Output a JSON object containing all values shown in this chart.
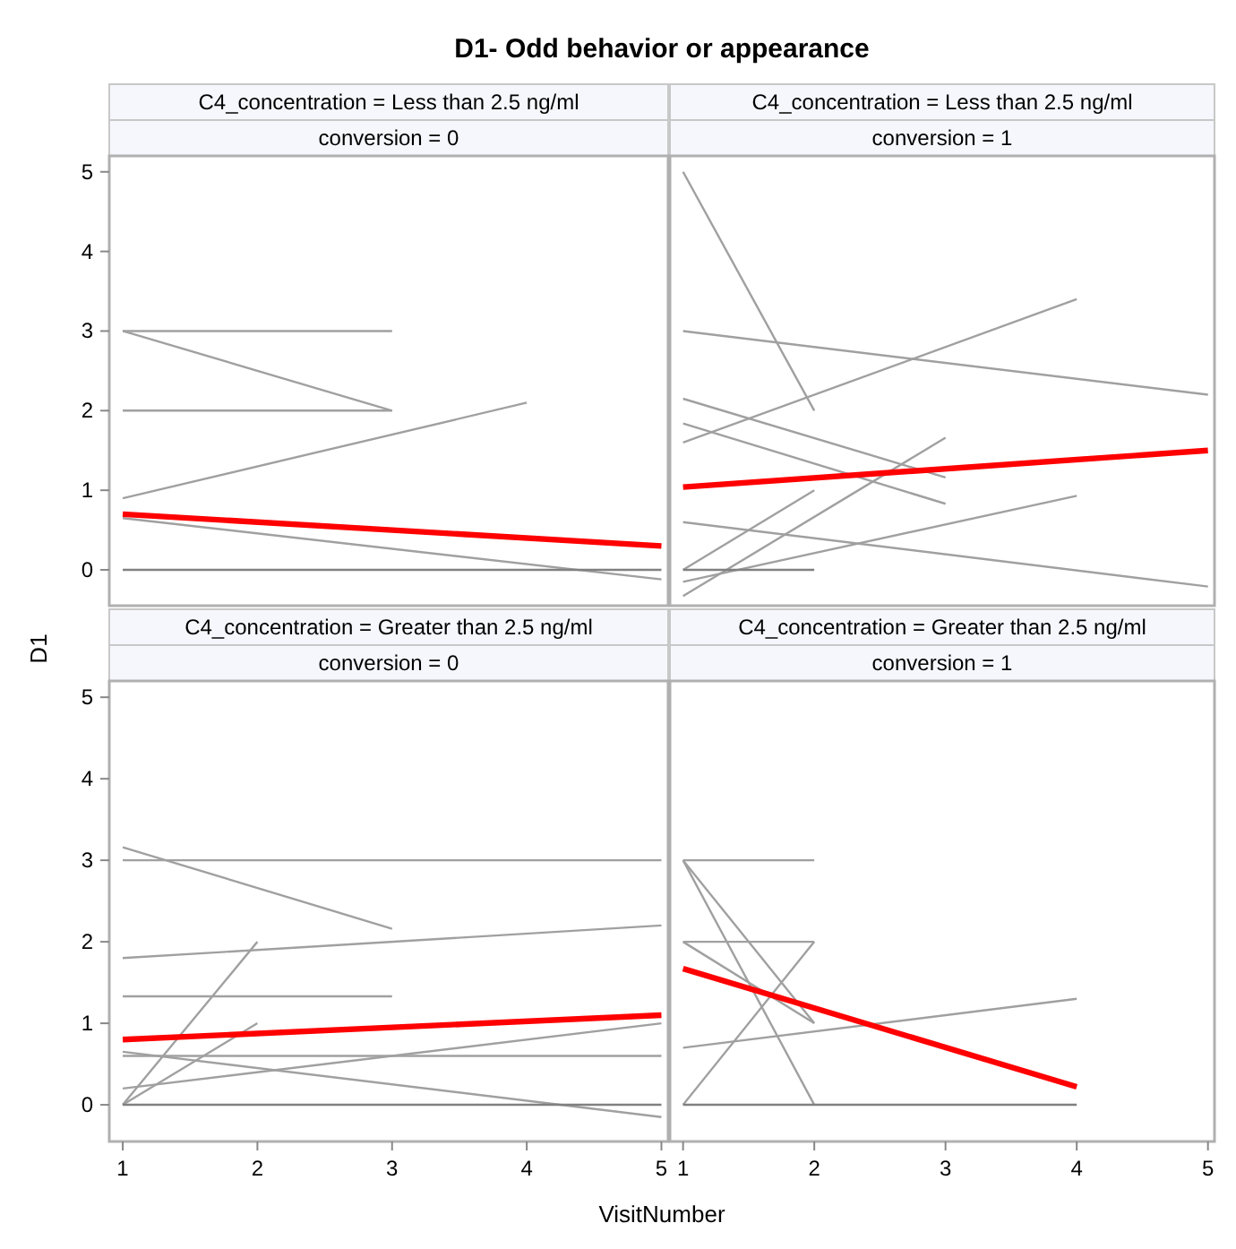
{
  "chart_data": [
    {
      "type": "line",
      "title": "C4_concentration = Less than 2.5 ng/ml",
      "subtitle": "conversion = 0",
      "ylabel": "D1",
      "annotations": [
        "D1- Odd behavior or appearance"
      ],
      "xlim": [
        0.9,
        5.05
      ],
      "ylim": [
        -0.45,
        5.2
      ],
      "yticks": [
        0,
        1,
        2,
        3,
        4,
        5
      ],
      "tick_labels": "y",
      "grid": false,
      "series": [
        {
          "color": "#a0a0a0",
          "x": [
            1,
            3
          ],
          "values": [
            3,
            3
          ]
        },
        {
          "color": "#a0a0a0",
          "x": [
            1,
            3
          ],
          "values": [
            3,
            2
          ]
        },
        {
          "color": "#a0a0a0",
          "x": [
            1,
            3
          ],
          "values": [
            2,
            2
          ]
        },
        {
          "color": "#a0a0a0",
          "x": [
            1,
            4
          ],
          "values": [
            0.9,
            2.1
          ]
        },
        {
          "color": "#a0a0a0",
          "x": [
            1,
            5
          ],
          "values": [
            0.65,
            -0.12
          ]
        },
        {
          "color": "#808080",
          "x": [
            1,
            5
          ],
          "values": [
            0,
            0
          ]
        },
        {
          "color": "#ff0000",
          "x": [
            1,
            5
          ],
          "values": [
            0.7,
            0.3
          ]
        }
      ]
    },
    {
      "type": "line",
      "title": "C4_concentration = Less than 2.5 ng/ml",
      "subtitle": "conversion = 1",
      "xlim": [
        0.9,
        5.05
      ],
      "ylim": [
        -0.45,
        5.2
      ],
      "tick_labels": false,
      "grid": false,
      "series": [
        {
          "color": "#a0a0a0",
          "x": [
            1,
            2
          ],
          "values": [
            5,
            2
          ]
        },
        {
          "color": "#a0a0a0",
          "x": [
            1,
            5
          ],
          "values": [
            3,
            2.2
          ]
        },
        {
          "color": "#a0a0a0",
          "x": [
            1,
            4
          ],
          "values": [
            1.6,
            3.4
          ]
        },
        {
          "color": "#a0a0a0",
          "x": [
            1,
            3
          ],
          "values": [
            2.15,
            1.16
          ]
        },
        {
          "color": "#a0a0a0",
          "x": [
            1,
            3
          ],
          "values": [
            1.84,
            0.83
          ]
        },
        {
          "color": "#a0a0a0",
          "x": [
            1,
            5
          ],
          "values": [
            0.6,
            -0.21
          ]
        },
        {
          "color": "#a0a0a0",
          "x": [
            1,
            2
          ],
          "values": [
            0,
            1
          ]
        },
        {
          "color": "#a0a0a0",
          "x": [
            1,
            3
          ],
          "values": [
            -0.33,
            1.66
          ]
        },
        {
          "color": "#a0a0a0",
          "x": [
            1,
            4
          ],
          "values": [
            -0.15,
            0.93
          ]
        },
        {
          "color": "#808080",
          "x": [
            1,
            2
          ],
          "values": [
            0,
            0
          ]
        },
        {
          "color": "#ff0000",
          "x": [
            1,
            5
          ],
          "values": [
            1.04,
            1.5
          ]
        }
      ]
    },
    {
      "type": "line",
      "title": "C4_concentration = Greater than 2.5 ng/ml",
      "subtitle": "conversion = 0",
      "xlabel": "VisitNumber",
      "xlim": [
        0.9,
        5.05
      ],
      "ylim": [
        -0.45,
        5.2
      ],
      "xticks": [
        1,
        2,
        3,
        4,
        5
      ],
      "yticks": [
        0,
        1,
        2,
        3,
        4,
        5
      ],
      "grid": false,
      "series": [
        {
          "color": "#a0a0a0",
          "x": [
            1,
            5
          ],
          "values": [
            3,
            3
          ]
        },
        {
          "color": "#a0a0a0",
          "x": [
            1,
            3
          ],
          "values": [
            3.16,
            2.16
          ]
        },
        {
          "color": "#a0a0a0",
          "x": [
            1,
            5
          ],
          "values": [
            1.8,
            2.2
          ]
        },
        {
          "color": "#a0a0a0",
          "x": [
            1,
            3
          ],
          "values": [
            1.33,
            1.33
          ]
        },
        {
          "color": "#a0a0a0",
          "x": [
            1,
            2
          ],
          "values": [
            0,
            2
          ]
        },
        {
          "color": "#a0a0a0",
          "x": [
            1,
            2
          ],
          "values": [
            0,
            1
          ]
        },
        {
          "color": "#a0a0a0",
          "x": [
            1,
            5
          ],
          "values": [
            0.6,
            0.6
          ]
        },
        {
          "color": "#a0a0a0",
          "x": [
            1,
            5
          ],
          "values": [
            0.2,
            1
          ]
        },
        {
          "color": "#a0a0a0",
          "x": [
            1,
            5
          ],
          "values": [
            0.65,
            -0.15
          ]
        },
        {
          "color": "#808080",
          "x": [
            1,
            5
          ],
          "values": [
            0,
            0
          ]
        },
        {
          "color": "#ff0000",
          "x": [
            1,
            5
          ],
          "values": [
            0.8,
            1.1
          ]
        }
      ]
    },
    {
      "type": "line",
      "title": "C4_concentration = Greater than 2.5 ng/ml",
      "subtitle": "conversion = 1",
      "xlim": [
        0.9,
        5.05
      ],
      "ylim": [
        -0.45,
        5.2
      ],
      "xticks": [
        1,
        2,
        3,
        4,
        5
      ],
      "tick_labels": "x",
      "grid": false,
      "series": [
        {
          "color": "#a0a0a0",
          "x": [
            1,
            2
          ],
          "values": [
            3,
            3
          ]
        },
        {
          "color": "#a0a0a0",
          "x": [
            1,
            2
          ],
          "values": [
            3,
            0
          ]
        },
        {
          "color": "#a0a0a0",
          "x": [
            1,
            2
          ],
          "values": [
            3,
            1
          ]
        },
        {
          "color": "#a0a0a0",
          "x": [
            1,
            2
          ],
          "values": [
            2,
            2
          ]
        },
        {
          "color": "#a0a0a0",
          "x": [
            1,
            2
          ],
          "values": [
            2,
            1
          ]
        },
        {
          "color": "#a0a0a0",
          "x": [
            1,
            2
          ],
          "values": [
            0,
            2
          ]
        },
        {
          "color": "#a0a0a0",
          "x": [
            1,
            4
          ],
          "values": [
            0.7,
            1.3
          ]
        },
        {
          "color": "#808080",
          "x": [
            1,
            4
          ],
          "values": [
            0,
            0
          ]
        },
        {
          "color": "#ff0000",
          "x": [
            1,
            4
          ],
          "values": [
            1.67,
            0.22
          ]
        }
      ]
    }
  ]
}
